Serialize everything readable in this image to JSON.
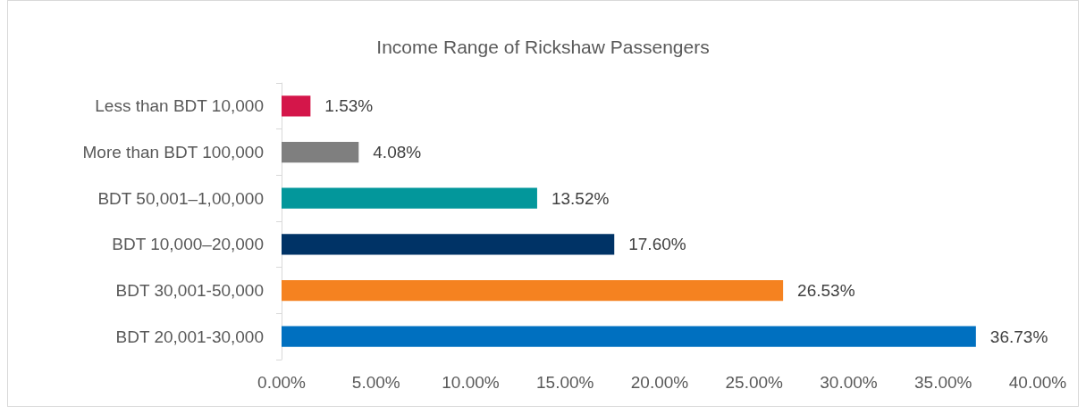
{
  "chart_data": {
    "type": "bar",
    "orientation": "horizontal",
    "title": "Income Range of Rickshaw Passengers",
    "categories": [
      "Less than BDT 10,000",
      "More than BDT 100,000",
      "BDT 50,001–1,00,000",
      "BDT 10,000–20,000",
      "BDT 30,001-50,000",
      "BDT 20,001-30,000"
    ],
    "values": [
      1.53,
      4.08,
      13.52,
      17.6,
      26.53,
      36.73
    ],
    "colors": [
      "#d4164a",
      "#7f7f7f",
      "#03979b",
      "#003366",
      "#f58220",
      "#0070c0"
    ],
    "value_labels": [
      "1.53%",
      "4.08%",
      "13.52%",
      "17.60%",
      "26.53%",
      "36.73%"
    ],
    "xlim": [
      0,
      40
    ],
    "xticks": [
      {
        "value": 0,
        "label": "0.00%"
      },
      {
        "value": 5,
        "label": "5.00%"
      },
      {
        "value": 10,
        "label": "10.00%"
      },
      {
        "value": 15,
        "label": "15.00%"
      },
      {
        "value": 20,
        "label": "20.00%"
      },
      {
        "value": 25,
        "label": "25.00%"
      },
      {
        "value": 30,
        "label": "30.00%"
      },
      {
        "value": 35,
        "label": "35.00%"
      },
      {
        "value": 40,
        "label": "40.00%"
      }
    ],
    "grid": false
  }
}
